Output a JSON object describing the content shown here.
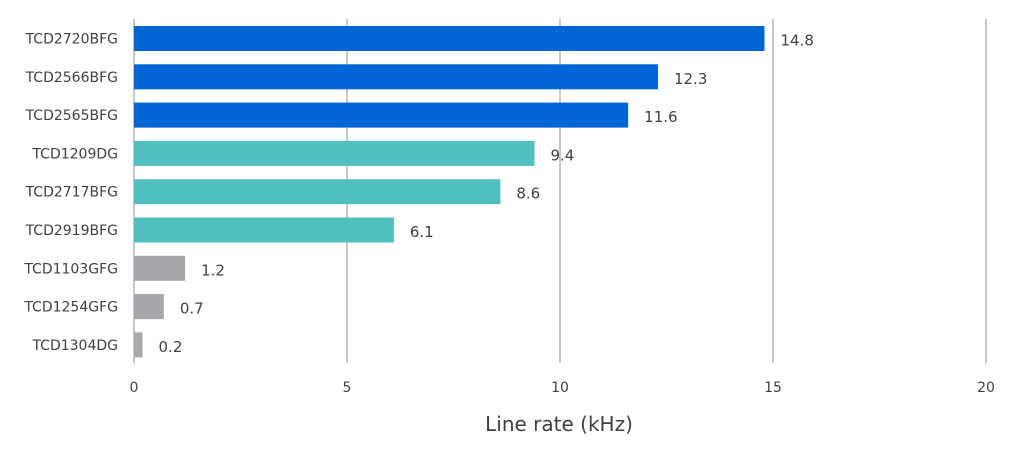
{
  "chart_data": {
    "type": "bar",
    "orientation": "horizontal",
    "title": "",
    "xlabel": "Line rate (kHz)",
    "ylabel": "",
    "xlim": [
      0,
      20
    ],
    "xticks": [
      0,
      5,
      10,
      15,
      20
    ],
    "grid": "vertical",
    "legend": "none",
    "categories": [
      "TCD2720BFG",
      "TCD2566BFG",
      "TCD2565BFG",
      "TCD1209DG",
      "TCD2717BFG",
      "TCD2919BFG",
      "TCD1103GFG",
      "TCD1254GFG",
      "TCD1304DG"
    ],
    "values": [
      14.8,
      12.3,
      11.6,
      9.4,
      8.6,
      6.1,
      1.2,
      0.7,
      0.2
    ],
    "value_labels": [
      "14.8",
      "12.3",
      "11.6",
      "9.4",
      "8.6",
      "6.1",
      "1.2",
      "0.7",
      "0.2"
    ],
    "bar_colors": [
      "#0066d6",
      "#0066d6",
      "#0066d6",
      "#4fbfbf",
      "#4fbfbf",
      "#4fbfbf",
      "#a6a6ab",
      "#a6a6ab",
      "#a6a6ab"
    ],
    "gridline_color": "#c8c8c8"
  }
}
